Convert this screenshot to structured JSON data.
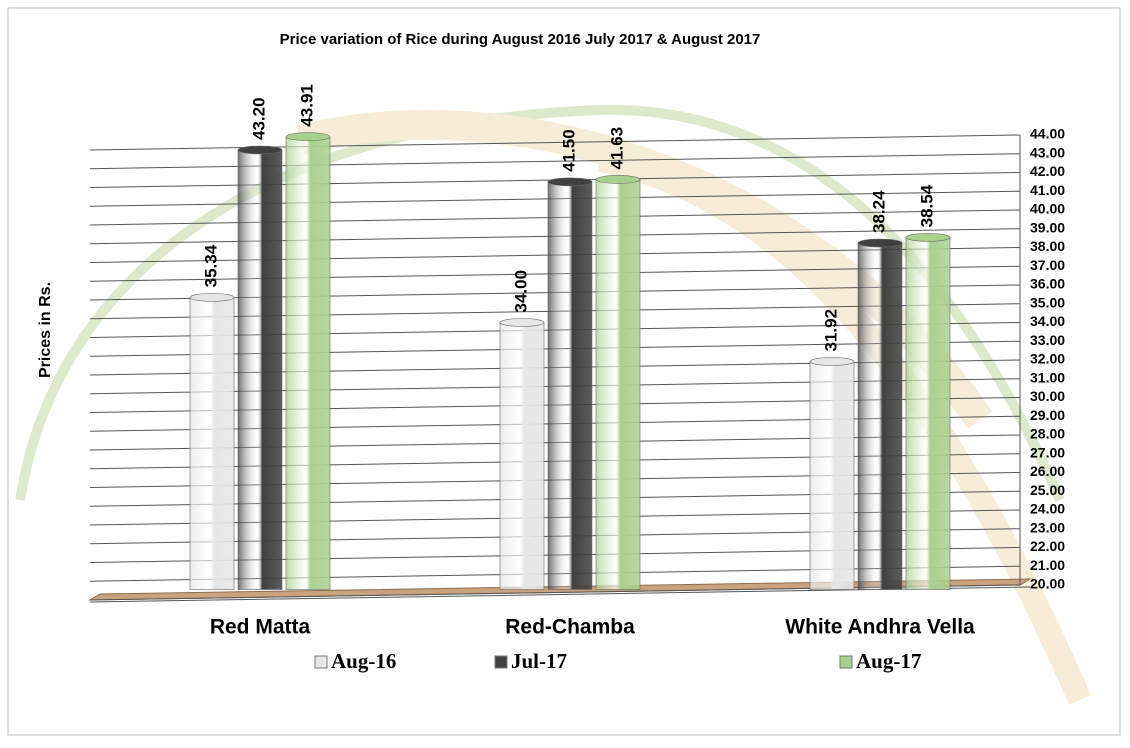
{
  "chart_data": {
    "type": "bar",
    "title": "Price variation of Rice during  August  2016  July  2017 &  August  2017",
    "y_label": "Prices in Rs.",
    "categories": [
      "Red Matta",
      "Red-Chamba",
      "White Andhra Vella"
    ],
    "series": [
      {
        "name": "Aug-16",
        "color": "#e6e6e6",
        "values": [
          35.34,
          34.0,
          31.92
        ],
        "value_labels": [
          "35.34",
          "34.00",
          "31.92"
        ]
      },
      {
        "name": "Jul-17",
        "color": "#404040",
        "values": [
          43.2,
          41.5,
          38.24
        ],
        "value_labels": [
          "43.20",
          "41.50",
          "38.24"
        ]
      },
      {
        "name": "Aug-17",
        "color": "#a9d18e",
        "values": [
          43.91,
          41.63,
          38.54
        ],
        "value_labels": [
          "43.91",
          "41.63",
          "38.54"
        ]
      }
    ],
    "ylim": [
      20,
      44
    ],
    "yticks": [
      {
        "value": 20,
        "label": "20.00"
      },
      {
        "value": 21,
        "label": "21.00"
      },
      {
        "value": 22,
        "label": "22.00"
      },
      {
        "value": 23,
        "label": "23.00"
      },
      {
        "value": 24,
        "label": "24.00"
      },
      {
        "value": 25,
        "label": "25.00"
      },
      {
        "value": 26,
        "label": "26.00"
      },
      {
        "value": 27,
        "label": "27.00"
      },
      {
        "value": 28,
        "label": "28.00"
      },
      {
        "value": 29,
        "label": "29.00"
      },
      {
        "value": 30,
        "label": "30.00"
      },
      {
        "value": 31,
        "label": "31.00"
      },
      {
        "value": 32,
        "label": "32.00"
      },
      {
        "value": 33,
        "label": "33.00"
      },
      {
        "value": 34,
        "label": "34.00"
      },
      {
        "value": 35,
        "label": "35.00"
      },
      {
        "value": 36,
        "label": "36.00"
      },
      {
        "value": 37,
        "label": "37.00"
      },
      {
        "value": 38,
        "label": "38.00"
      },
      {
        "value": 39,
        "label": "39.00"
      },
      {
        "value": 40,
        "label": "40.00"
      },
      {
        "value": 41,
        "label": "41.00"
      },
      {
        "value": 42,
        "label": "42.00"
      },
      {
        "value": 43,
        "label": "43.00"
      },
      {
        "value": 44,
        "label": "44.00"
      }
    ],
    "grid": true
  }
}
